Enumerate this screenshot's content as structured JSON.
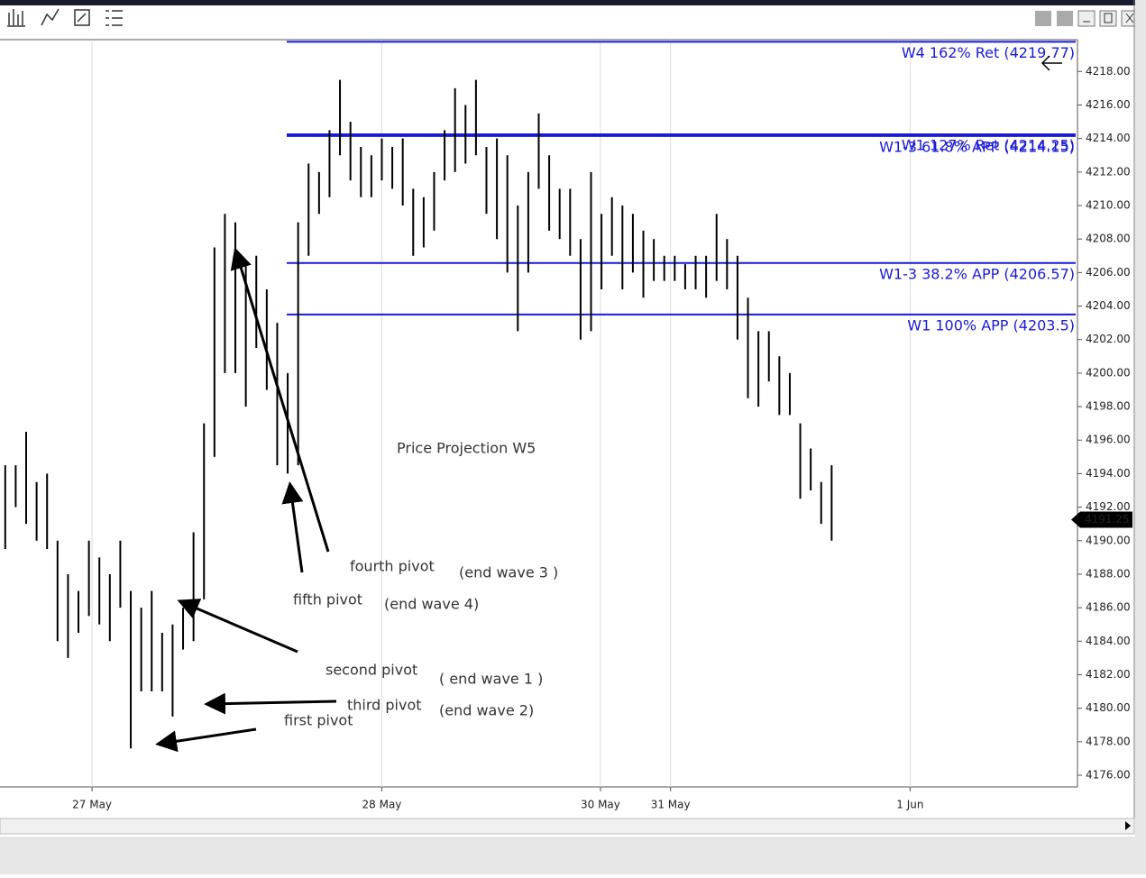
{
  "chart_data": {
    "type": "ohlc",
    "x": [
      0,
      1,
      2,
      3,
      4,
      5,
      6,
      7,
      8,
      9,
      10,
      11,
      12,
      13,
      14,
      15,
      16,
      17,
      18,
      19,
      20,
      21,
      22,
      23,
      24,
      25,
      26,
      27,
      28,
      29,
      30,
      31,
      32,
      33,
      34,
      35,
      36,
      37,
      38,
      39,
      40,
      41,
      42,
      43,
      44,
      45,
      46,
      47,
      48,
      49,
      50,
      51,
      52,
      53,
      54,
      55,
      56,
      57,
      58,
      59,
      60,
      61,
      62,
      63,
      64,
      65,
      66,
      67,
      68,
      69,
      70,
      71,
      72,
      73,
      74,
      75,
      76,
      77,
      78,
      79
    ],
    "highs": [
      4194.5,
      4194.5,
      4196.5,
      4193.5,
      4194,
      4190,
      4188,
      4187,
      4190,
      4189,
      4188,
      4190,
      4187,
      4186,
      4187,
      4184.5,
      4185,
      4186,
      4190.5,
      4197,
      4207.5,
      4209.5,
      4209,
      4206.5,
      4207,
      4205,
      4203,
      4200,
      4209,
      4212.5,
      4212,
      4214.5,
      4217.5,
      4215,
      4213.5,
      4213,
      4214,
      4213.5,
      4214,
      4211,
      4210.5,
      4212,
      4214.5,
      4217,
      4216,
      4217.5,
      4213.5,
      4214,
      4213,
      4210,
      4212,
      4215.5,
      4213,
      4211,
      4211,
      4208,
      4212,
      4209.5,
      4210.5,
      4210,
      4209.5,
      4208.5,
      4208,
      4207,
      4207,
      4206.5,
      4207,
      4207,
      4209.5,
      4208,
      4207,
      4204.5,
      4202.5,
      4202.5,
      4201,
      4200,
      4197,
      4195.5,
      4193.5,
      4194.5
    ],
    "lows": [
      4189.5,
      4192,
      4191,
      4190,
      4189.5,
      4184,
      4183,
      4184.5,
      4185.5,
      4185,
      4184,
      4186,
      4177.6,
      4181,
      4181,
      4181,
      4179.5,
      4183.5,
      4184,
      4186.5,
      4195,
      4200,
      4200,
      4198,
      4201.5,
      4199,
      4194.5,
      4194,
      4194.5,
      4207,
      4209.5,
      4210.5,
      4213,
      4211.5,
      4210.5,
      4210.5,
      4211.5,
      4211,
      4210,
      4207,
      4207.5,
      4208.5,
      4211.5,
      4212,
      4212.5,
      4213,
      4209.5,
      4208,
      4206,
      4202.5,
      4206,
      4211,
      4208.5,
      4208,
      4207,
      4202,
      4202.5,
      4205,
      4207,
      4205,
      4206,
      4204.5,
      4205.5,
      4205.5,
      4205.5,
      4205,
      4205,
      4204.5,
      4205.5,
      4205,
      4202,
      4198.5,
      4198,
      4199.5,
      4197.5,
      4197.5,
      4192.5,
      4193,
      4191,
      4190
    ],
    "color": "#000000",
    "last_price": 4191.25,
    "xlim": [
      -0.5,
      102.5
    ],
    "xticks": [
      {
        "value": 8.3,
        "label": "27 May"
      },
      {
        "value": 36,
        "label": "28 May"
      },
      {
        "value": 56.9,
        "label": "30 May"
      },
      {
        "value": 63.6,
        "label": "31 May"
      },
      {
        "value": 86.5,
        "label": "1 Jun"
      }
    ],
    "ylim": [
      4175.3,
      4219.9
    ],
    "yticks": [
      {
        "value": 4176,
        "label": "4176.00"
      },
      {
        "value": 4178,
        "label": "4178.00"
      },
      {
        "value": 4180,
        "label": "4180.00"
      },
      {
        "value": 4182,
        "label": "4182.00"
      },
      {
        "value": 4184,
        "label": "4184.00"
      },
      {
        "value": 4186,
        "label": "4186.00"
      },
      {
        "value": 4188,
        "label": "4188.00"
      },
      {
        "value": 4190,
        "label": "4190.00"
      },
      {
        "value": 4192,
        "label": "4192.00"
      },
      {
        "value": 4194,
        "label": "4194.00"
      },
      {
        "value": 4196,
        "label": "4196.00"
      },
      {
        "value": 4198,
        "label": "4198.00"
      },
      {
        "value": 4200,
        "label": "4200.00"
      },
      {
        "value": 4202,
        "label": "4202.00"
      },
      {
        "value": 4204,
        "label": "4204.00"
      },
      {
        "value": 4206,
        "label": "4206.00"
      },
      {
        "value": 4208,
        "label": "4208.00"
      },
      {
        "value": 4210,
        "label": "4210.00"
      },
      {
        "value": 4212,
        "label": "4212.00"
      },
      {
        "value": 4214,
        "label": "4214.00"
      },
      {
        "value": 4216,
        "label": "4216.00"
      },
      {
        "value": 4218,
        "label": "4218.00"
      }
    ],
    "levels": [
      {
        "label": "W4 162% Ret  (4219.77)",
        "value": 4219.77
      },
      {
        "label": "W1 127% Ret  (4214.25)",
        "value": 4214.25
      },
      {
        "label": "W1-3 61.8% APP  (4214.15)",
        "value": 4214.15
      },
      {
        "label": "W1-3 38.2% APP  (4206.57)",
        "value": 4206.57
      },
      {
        "label": "W1 100% APP  (4203.5)",
        "value": 4203.5
      }
    ],
    "annotations": [
      "Price Projection W5",
      "fourth pivot",
      "(end wave 3 )",
      "fifth pivot",
      "(end wave 4)",
      "second pivot",
      "( end wave 1 )",
      "third pivot",
      "(end wave 2)",
      "first pivot"
    ]
  }
}
